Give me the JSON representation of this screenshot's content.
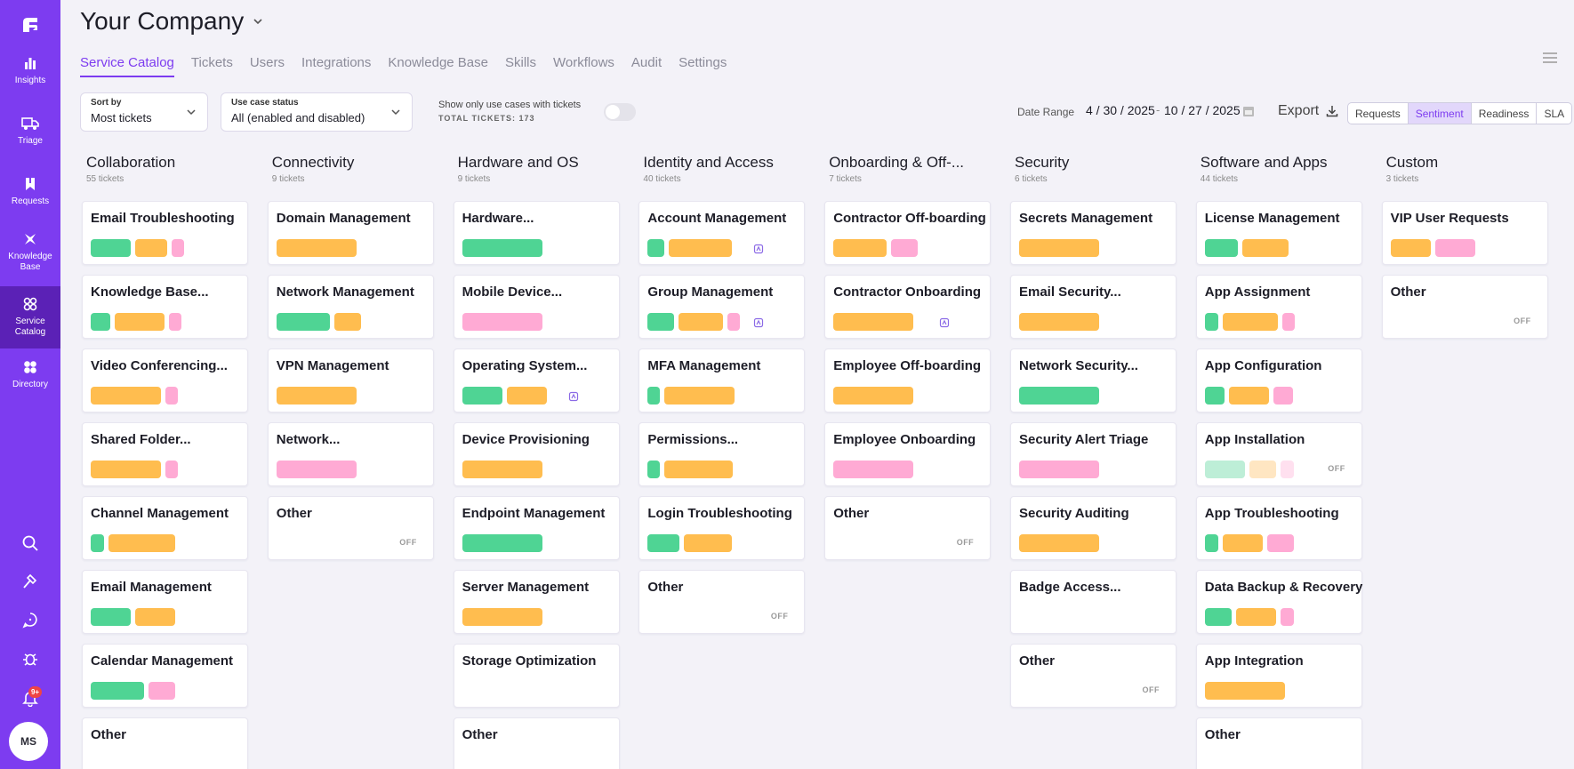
{
  "sidebar": {
    "logo": "logo-icon",
    "nav": [
      {
        "label": "Insights",
        "icon": "bar-chart-icon"
      },
      {
        "label": "Triage",
        "icon": "truck-icon"
      },
      {
        "label": "Requests",
        "icon": "bookmark-icon"
      },
      {
        "label": "Knowledge Base",
        "icon": "knowledge-icon"
      },
      {
        "label": "Service Catalog",
        "icon": "catalog-icon"
      },
      {
        "label": "Directory",
        "icon": "directory-icon"
      }
    ],
    "notifications_badge": "9+",
    "avatar_initials": "MS"
  },
  "header": {
    "company": "Your Company",
    "tabs": [
      "Service Catalog",
      "Tickets",
      "Users",
      "Integrations",
      "Knowledge Base",
      "Skills",
      "Workflows",
      "Audit",
      "Settings"
    ],
    "active_tab": "Service Catalog"
  },
  "controls": {
    "sort_label": "Sort by",
    "sort_value": "Most tickets",
    "status_label": "Use case status",
    "status_value": "All (enabled and disabled)",
    "show_only_text": "Show only use cases with tickets",
    "total_tickets": "TOTAL TICKETS: 173",
    "toggle_on": false,
    "date_range_label": "Date Range",
    "date_start": "4 / 30 / 2025",
    "date_end": "10 / 27 / 2025",
    "date_sep": "-",
    "export_label": "Export",
    "view_modes": [
      "Requests",
      "Sentiment",
      "Readiness",
      "SLA"
    ],
    "active_view": "Sentiment"
  },
  "colors": {
    "accent": "#7d3cf0",
    "green": "#4fd494",
    "orange": "#ffbd4f",
    "pink": "#ffaad4"
  },
  "columns": [
    {
      "title": "Collaboration",
      "count": "55 tickets",
      "cards": [
        {
          "title": "Email Troubleshooting",
          "bars": [
            [
              "g",
              0.24
            ],
            [
              "o",
              0.19
            ],
            [
              "p",
              0.05
            ]
          ]
        },
        {
          "title": "Knowledge Base...",
          "bars": [
            [
              "g",
              0.12
            ],
            [
              "o",
              0.3
            ],
            [
              "p",
              0.05
            ]
          ]
        },
        {
          "title": "Video Conferencing...",
          "bars": [
            [
              "o",
              0.42
            ],
            [
              "p",
              0.06
            ]
          ]
        },
        {
          "title": "Shared Folder...",
          "bars": [
            [
              "o",
              0.42
            ],
            [
              "p",
              0.07
            ]
          ]
        },
        {
          "title": "Channel Management",
          "bars": [
            [
              "g",
              0.08
            ],
            [
              "o",
              0.4
            ]
          ]
        },
        {
          "title": "Email Management",
          "bars": [
            [
              "g",
              0.24
            ],
            [
              "o",
              0.24
            ]
          ]
        },
        {
          "title": "Calendar Management",
          "bars": [
            [
              "g",
              0.32
            ],
            [
              "p",
              0.16
            ]
          ]
        },
        {
          "title": "Other",
          "bars": []
        }
      ]
    },
    {
      "title": "Connectivity",
      "count": "9 tickets",
      "cards": [
        {
          "title": "Domain Management",
          "bars": [
            [
              "o",
              0.48
            ]
          ]
        },
        {
          "title": "Network Management",
          "bars": [
            [
              "g",
              0.32
            ],
            [
              "o",
              0.16
            ]
          ]
        },
        {
          "title": "VPN Management",
          "bars": [
            [
              "o",
              0.48
            ]
          ]
        },
        {
          "title": "Network...",
          "bars": [
            [
              "p",
              0.48
            ]
          ]
        },
        {
          "title": "Other",
          "bars": [],
          "off": "OFF"
        }
      ]
    },
    {
      "title": "Hardware and OS",
      "count": "9 tickets",
      "cards": [
        {
          "title": "Hardware...",
          "bars": [
            [
              "g",
              0.48
            ]
          ]
        },
        {
          "title": "Mobile Device...",
          "bars": [
            [
              "p",
              0.48
            ]
          ]
        },
        {
          "title": "Operating System...",
          "bars": [
            [
              "g",
              0.24
            ],
            [
              "o",
              0.24
            ]
          ],
          "workflow": true
        },
        {
          "title": "Device Provisioning",
          "bars": [
            [
              "o",
              0.48
            ]
          ]
        },
        {
          "title": "Endpoint Management",
          "bars": [
            [
              "g",
              0.48
            ]
          ]
        },
        {
          "title": "Server Management",
          "bars": [
            [
              "o",
              0.48
            ]
          ]
        },
        {
          "title": "Storage Optimization",
          "bars": []
        },
        {
          "title": "Other",
          "bars": []
        }
      ]
    },
    {
      "title": "Identity and Access",
      "count": "40 tickets",
      "cards": [
        {
          "title": "Account Management",
          "bars": [
            [
              "g",
              0.1
            ],
            [
              "o",
              0.38
            ]
          ],
          "workflow": true
        },
        {
          "title": "Group Management",
          "bars": [
            [
              "g",
              0.16
            ],
            [
              "o",
              0.27
            ],
            [
              "p",
              0.05
            ]
          ],
          "workflow": true
        },
        {
          "title": "MFA Management",
          "bars": [
            [
              "g",
              0.06
            ],
            [
              "o",
              0.42
            ]
          ]
        },
        {
          "title": "Permissions...",
          "bars": [
            [
              "g",
              0.07
            ],
            [
              "o",
              0.41
            ]
          ]
        },
        {
          "title": "Login Troubleshooting",
          "bars": [
            [
              "g",
              0.19
            ],
            [
              "o",
              0.29
            ]
          ]
        },
        {
          "title": "Other",
          "bars": [],
          "off": "OFF"
        }
      ]
    },
    {
      "title": "Onboarding & Off-...",
      "count": "7 tickets",
      "cards": [
        {
          "title": "Contractor Off-boarding",
          "bars": [
            [
              "o",
              0.32
            ],
            [
              "p",
              0.16
            ]
          ]
        },
        {
          "title": "Contractor Onboarding",
          "bars": [
            [
              "o",
              0.48
            ]
          ],
          "workflow": true
        },
        {
          "title": "Employee Off-boarding",
          "bars": [
            [
              "o",
              0.48
            ]
          ]
        },
        {
          "title": "Employee Onboarding",
          "bars": [
            [
              "p",
              0.48
            ]
          ]
        },
        {
          "title": "Other",
          "bars": [],
          "off": "OFF"
        }
      ]
    },
    {
      "title": "Security",
      "count": "6 tickets",
      "cards": [
        {
          "title": "Secrets Management",
          "bars": [
            [
              "o",
              0.48
            ]
          ]
        },
        {
          "title": "Email Security...",
          "bars": [
            [
              "o",
              0.48
            ]
          ]
        },
        {
          "title": "Network Security...",
          "bars": [
            [
              "g",
              0.48
            ]
          ]
        },
        {
          "title": "Security Alert Triage",
          "bars": [
            [
              "p",
              0.48
            ]
          ]
        },
        {
          "title": "Security Auditing",
          "bars": [
            [
              "o",
              0.48
            ]
          ]
        },
        {
          "title": "Badge Access...",
          "bars": []
        },
        {
          "title": "Other",
          "bars": [],
          "off": "OFF"
        }
      ]
    },
    {
      "title": "Software and Apps",
      "count": "44 tickets",
      "cards": [
        {
          "title": "License Management",
          "bars": [
            [
              "g",
              0.2
            ],
            [
              "o",
              0.28
            ]
          ]
        },
        {
          "title": "App Assignment",
          "bars": [
            [
              "g",
              0.08
            ],
            [
              "o",
              0.33
            ],
            [
              "p",
              0.07
            ]
          ]
        },
        {
          "title": "App Configuration",
          "bars": [
            [
              "g",
              0.12
            ],
            [
              "o",
              0.24
            ],
            [
              "p",
              0.12
            ]
          ]
        },
        {
          "title": "App Installation",
          "bars": [
            [
              "g",
              0.24
            ],
            [
              "o",
              0.16
            ],
            [
              "p",
              0.08
            ]
          ],
          "faded": true,
          "off": "OFF"
        },
        {
          "title": "App Troubleshooting",
          "bars": [
            [
              "g",
              0.08
            ],
            [
              "o",
              0.24
            ],
            [
              "p",
              0.16
            ]
          ]
        },
        {
          "title": "Data Backup & Recovery",
          "bars": [
            [
              "g",
              0.16
            ],
            [
              "o",
              0.24
            ],
            [
              "p",
              0.08
            ]
          ]
        },
        {
          "title": "App Integration",
          "bars": [
            [
              "o",
              0.48
            ]
          ]
        },
        {
          "title": "Other",
          "bars": []
        }
      ]
    },
    {
      "title": "Custom",
      "count": "3 tickets",
      "cards": [
        {
          "title": "VIP User Requests",
          "bars": [
            [
              "o",
              0.24
            ],
            [
              "p",
              0.24
            ]
          ]
        },
        {
          "title": "Other",
          "bars": [],
          "off": "OFF"
        }
      ]
    }
  ]
}
